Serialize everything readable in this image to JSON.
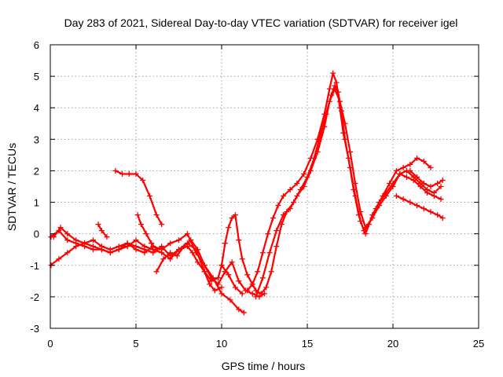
{
  "chart_data": {
    "type": "scatter",
    "title": "Day 283 of 2021, Sidereal Day-to-day VTEC variation (SDTVAR) for receiver igel",
    "xlabel": "GPS time / hours",
    "ylabel": "SDTVAR / TECUs",
    "xlim": [
      0,
      25
    ],
    "ylim": [
      -3,
      6
    ],
    "xticks": [
      "0",
      "5",
      "10",
      "15",
      "20",
      "25"
    ],
    "yticks": [
      "-3",
      "-2",
      "-1",
      "0",
      "1",
      "2",
      "3",
      "4",
      "5",
      "6"
    ],
    "xtick_values": [
      0,
      5,
      10,
      15,
      20,
      25
    ],
    "ytick_values": [
      -3,
      -2,
      -1,
      0,
      1,
      2,
      3,
      4,
      5,
      6
    ],
    "grid": true,
    "marker": "+",
    "color": "#ff0000",
    "series": [
      {
        "name": "s1",
        "x": [
          0,
          0.5,
          1.0,
          1.5,
          2.0,
          2.5,
          3.0,
          3.5,
          4.0,
          4.5,
          5.0,
          5.5,
          6.0,
          6.5,
          7.0,
          7.5,
          8.0,
          8.5,
          9.0,
          9.3,
          9.6,
          10.0
        ],
        "y": [
          -0.1,
          0.1,
          -0.2,
          -0.3,
          -0.4,
          -0.5,
          -0.5,
          -0.6,
          -0.5,
          -0.3,
          -0.4,
          -0.5,
          -0.6,
          -0.4,
          -0.7,
          -0.5,
          -0.3,
          -0.5,
          -1.2,
          -1.6,
          -1.8,
          -1.7
        ]
      },
      {
        "name": "s2",
        "x": [
          0,
          0.5,
          1.0,
          1.5,
          2.0,
          2.5,
          3.0,
          3.5,
          4.0,
          4.5,
          5.0,
          5.5,
          6.0,
          6.5,
          7.0,
          7.5,
          8.0,
          8.3,
          8.6,
          9.0,
          9.4,
          9.8,
          10.0,
          10.4,
          10.8,
          11.2
        ],
        "y": [
          -1.0,
          -0.8,
          -0.6,
          -0.4,
          -0.3,
          -0.4,
          -0.5,
          -0.6,
          -0.5,
          -0.4,
          -0.2,
          -0.4,
          -0.5,
          -0.6,
          -0.8,
          -0.5,
          -0.4,
          -0.6,
          -0.9,
          -1.2,
          -1.5,
          -1.4,
          -1.0,
          -1.3,
          -1.7,
          -1.9
        ]
      },
      {
        "name": "s3",
        "x": [
          0.2,
          0.6,
          1.0,
          1.5,
          2.0,
          2.5,
          3.0,
          3.5,
          4.0,
          4.5,
          5.0,
          5.5,
          6.0,
          6.5,
          7.0,
          7.5,
          8.0,
          8.5,
          9.0,
          9.5,
          10.0,
          10.5,
          11.0,
          11.3
        ],
        "y": [
          -0.1,
          0.2,
          0.0,
          -0.2,
          -0.3,
          -0.2,
          -0.4,
          -0.5,
          -0.4,
          -0.3,
          -0.5,
          -0.6,
          -0.4,
          -0.5,
          -0.3,
          -0.2,
          0.0,
          -0.6,
          -1.0,
          -1.4,
          -1.9,
          -2.1,
          -2.4,
          -2.5
        ]
      },
      {
        "name": "s4",
        "x": [
          6.2,
          6.6,
          7.0,
          7.4,
          7.8,
          8.2,
          8.6,
          9.0,
          9.4,
          9.8,
          10.2,
          10.6,
          11.0,
          11.4,
          11.8,
          12.2,
          12.5
        ],
        "y": [
          -1.2,
          -0.8,
          -0.6,
          -0.7,
          -0.4,
          -0.2,
          -0.5,
          -1.0,
          -1.4,
          -1.6,
          -1.2,
          -0.9,
          -1.5,
          -1.8,
          -1.9,
          -2.0,
          -1.9
        ]
      },
      {
        "name": "s5",
        "x": [
          10.0,
          10.2,
          10.4,
          10.6,
          10.8,
          11.0,
          11.2,
          11.5,
          11.8,
          12.0,
          12.3,
          12.6,
          12.9,
          13.2,
          13.5,
          13.8,
          14.2,
          14.6,
          15.0,
          15.4,
          15.8,
          16.1,
          16.4,
          16.6,
          16.8,
          17.0,
          17.2,
          17.5,
          17.8,
          18.1,
          18.4,
          18.8,
          19.2,
          19.6,
          20.0,
          20.4,
          20.8,
          21.2,
          21.6,
          22.0,
          22.4,
          22.8
        ],
        "y": [
          -1.0,
          -0.3,
          0.2,
          0.5,
          0.6,
          -0.2,
          -0.8,
          -1.3,
          -1.6,
          -1.8,
          -1.9,
          -1.7,
          -1.2,
          -0.4,
          0.3,
          0.7,
          1.0,
          1.4,
          1.8,
          2.4,
          3.2,
          3.8,
          4.4,
          4.7,
          4.5,
          3.9,
          3.0,
          2.1,
          1.2,
          0.4,
          0.0,
          0.6,
          1.0,
          1.3,
          1.6,
          1.9,
          1.8,
          1.7,
          1.5,
          1.3,
          1.2,
          1.1
        ]
      },
      {
        "name": "s6",
        "x": [
          11.5,
          11.8,
          12.1,
          12.4,
          12.7,
          13.0,
          13.3,
          13.6,
          14.0,
          14.4,
          14.8,
          15.2,
          15.6,
          16.0,
          16.3,
          16.5,
          16.7,
          16.9,
          17.1,
          17.4,
          17.7,
          18.0,
          18.3,
          18.6,
          19.0,
          19.4,
          19.8,
          20.2,
          20.6,
          21.0,
          21.4,
          21.8,
          22.2
        ],
        "y": [
          -1.8,
          -1.6,
          -1.2,
          -0.6,
          0.0,
          0.5,
          0.9,
          1.2,
          1.4,
          1.6,
          1.9,
          2.4,
          3.0,
          3.8,
          4.6,
          5.1,
          4.8,
          4.0,
          3.2,
          2.4,
          1.4,
          0.6,
          0.1,
          0.3,
          0.8,
          1.2,
          1.6,
          2.0,
          2.1,
          2.2,
          2.4,
          2.3,
          2.1
        ]
      },
      {
        "name": "s7",
        "x": [
          12.0,
          12.4,
          12.8,
          13.2,
          13.6,
          14.0,
          14.4,
          14.8,
          15.2,
          15.6,
          16.0,
          16.3,
          16.6,
          16.9,
          17.2,
          17.5,
          17.8,
          18.1,
          18.4,
          18.8,
          19.2,
          19.6,
          20.0,
          20.4,
          20.8,
          21.2,
          21.6,
          22.0,
          22.4,
          22.8
        ],
        "y": [
          -2.0,
          -1.4,
          -0.6,
          0.1,
          0.6,
          0.8,
          1.2,
          1.5,
          2.0,
          2.6,
          3.4,
          4.2,
          4.6,
          4.2,
          3.5,
          2.6,
          1.6,
          0.7,
          0.2,
          0.5,
          0.9,
          1.2,
          1.5,
          1.9,
          2.0,
          1.8,
          1.6,
          1.4,
          1.3,
          1.5
        ]
      },
      {
        "name": "s8",
        "x": [
          3.8,
          4.2,
          4.6,
          5.0,
          5.4,
          5.8,
          6.2,
          6.5
        ],
        "y": [
          2.0,
          1.9,
          1.9,
          1.9,
          1.7,
          1.2,
          0.6,
          0.3
        ]
      },
      {
        "name": "s9",
        "x": [
          5.1,
          5.3,
          5.6,
          5.9,
          6.2
        ],
        "y": [
          0.6,
          0.3,
          0.0,
          -0.3,
          -0.5
        ]
      },
      {
        "name": "s10",
        "x": [
          2.8,
          3.0,
          3.3
        ],
        "y": [
          0.3,
          0.1,
          -0.1
        ]
      },
      {
        "name": "s11",
        "x": [
          20.2,
          20.6,
          21.0,
          21.4,
          21.8,
          22.2,
          22.6,
          22.9
        ],
        "y": [
          1.2,
          1.1,
          1.0,
          0.9,
          0.8,
          0.7,
          0.6,
          0.5
        ]
      },
      {
        "name": "s12",
        "x": [
          21.0,
          21.4,
          21.8,
          22.2,
          22.6,
          22.9
        ],
        "y": [
          2.0,
          1.8,
          1.6,
          1.5,
          1.6,
          1.7
        ]
      }
    ]
  }
}
